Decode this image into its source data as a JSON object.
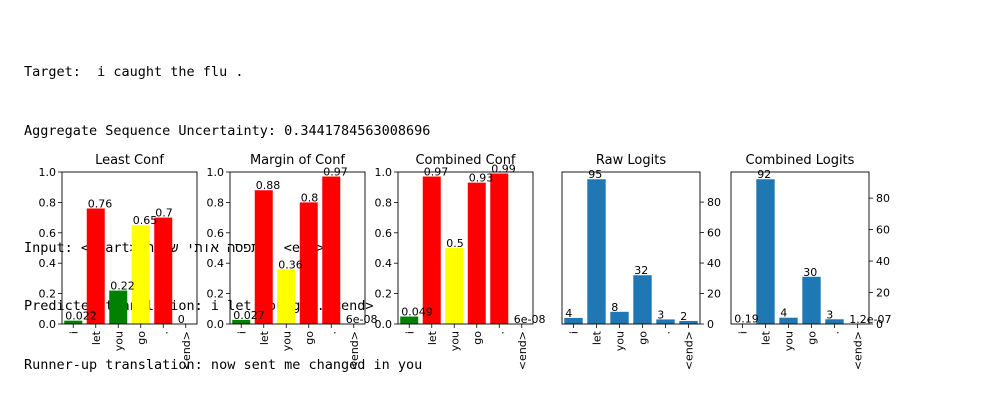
{
  "header": {
    "target": "Target:  i caught the flu .",
    "uncertainty": "Aggregate Sequence Uncertainty: 0.3441784563008696",
    "input": "Input: <start> תפסה אותי שפעת . <end>",
    "predicted": "Predicted translation: i let you go . <end>",
    "runner_up": "Runner-up translation: now sent me changed in you"
  },
  "colors": {
    "green": "#008000",
    "red": "#ff0000",
    "yellow": "#ffff00",
    "blue": "#1f77b4"
  },
  "chart_data": [
    {
      "type": "bar",
      "title": "Least Conf",
      "categories": [
        "i",
        "let",
        "you",
        "go",
        ".",
        "<end>"
      ],
      "values": [
        0.022,
        0.76,
        0.22,
        0.65,
        0.7,
        0
      ],
      "labels": [
        "0.022",
        "0.76",
        "0.22",
        "0.65",
        "0.7",
        "0"
      ],
      "bar_colors": [
        "green",
        "red",
        "green",
        "yellow",
        "red",
        "red"
      ],
      "ylim": [
        0,
        1.0
      ],
      "yticks": [
        "0.0",
        "0.2",
        "0.4",
        "0.6",
        "0.8",
        "1.0"
      ],
      "yaxis": "left"
    },
    {
      "type": "bar",
      "title": "Margin of Conf",
      "categories": [
        "i",
        "let",
        "you",
        "go",
        ".",
        "<end>"
      ],
      "values": [
        0.027,
        0.88,
        0.36,
        0.8,
        0.97,
        6e-08
      ],
      "labels": [
        "0.027",
        "0.88",
        "0.36",
        "0.8",
        "0.97",
        "6e-08"
      ],
      "bar_colors": [
        "green",
        "red",
        "yellow",
        "red",
        "red",
        "red"
      ],
      "ylim": [
        0,
        1.0
      ],
      "yticks": [
        "0.0",
        "0.2",
        "0.4",
        "0.6",
        "0.8",
        "1.0"
      ],
      "yaxis": "left"
    },
    {
      "type": "bar",
      "title": "Combined Conf",
      "categories": [
        "i",
        "let",
        "you",
        "go",
        ".",
        "<end>"
      ],
      "values": [
        0.049,
        0.97,
        0.5,
        0.93,
        0.99,
        6e-08
      ],
      "labels": [
        "0.049",
        "0.97",
        "0.5",
        "0.93",
        "0.99",
        "6e-08"
      ],
      "bar_colors": [
        "green",
        "red",
        "yellow",
        "red",
        "red",
        "red"
      ],
      "ylim": [
        0,
        1.0
      ],
      "yticks": [
        "0.0",
        "0.2",
        "0.4",
        "0.6",
        "0.8",
        "1.0"
      ],
      "yaxis": "left"
    },
    {
      "type": "bar",
      "title": "Raw Logits",
      "categories": [
        "i",
        "let",
        "you",
        "go",
        ".",
        "<end>"
      ],
      "values": [
        4,
        95,
        8,
        32,
        3,
        2
      ],
      "labels": [
        "4",
        "95",
        "8",
        "32",
        "3",
        "2"
      ],
      "bar_colors": [
        "blue",
        "blue",
        "blue",
        "blue",
        "blue",
        "blue"
      ],
      "ylim": [
        0,
        99.75
      ],
      "yticks": [
        "0",
        "20",
        "40",
        "60",
        "80"
      ],
      "yaxis": "right"
    },
    {
      "type": "bar",
      "title": "Combined Logits",
      "categories": [
        "i",
        "let",
        "you",
        "go",
        ".",
        "<end>"
      ],
      "values": [
        0.19,
        92,
        4,
        30,
        3,
        1.2e-07
      ],
      "labels": [
        "0.19",
        "92",
        "4",
        "30",
        "3",
        "1.2e-07"
      ],
      "bar_colors": [
        "blue",
        "blue",
        "blue",
        "blue",
        "blue",
        "blue"
      ],
      "ylim": [
        0,
        96.6
      ],
      "yticks": [
        "0",
        "20",
        "40",
        "60",
        "80"
      ],
      "yaxis": "right"
    }
  ]
}
